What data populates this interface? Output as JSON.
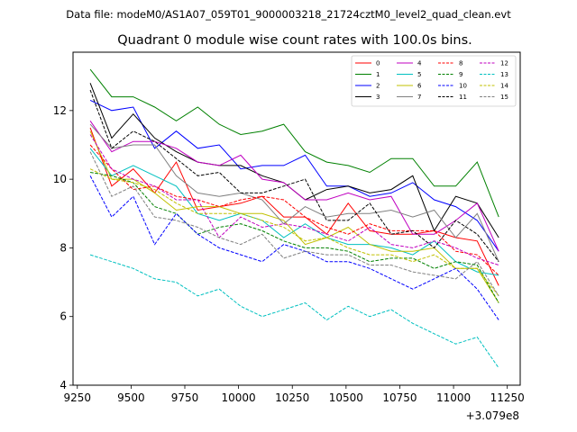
{
  "chart_data": {
    "type": "line",
    "suptitle": "Data file: modeM0/AS1A07_059T01_9000003218_21724cztM0_level2_quad_clean.evt",
    "title": "Quadrant 0 module wise count rates with 100.0s bins.",
    "xlabel": "",
    "ylabel": "",
    "x_offset_label": "+3.079e8",
    "xlim": [
      9230,
      11310
    ],
    "ylim": [
      4,
      13.7
    ],
    "xticks": [
      9250,
      9500,
      9750,
      10000,
      10250,
      10500,
      10750,
      11000,
      11250
    ],
    "xtick_labels": [
      "9250",
      "9500",
      "9750",
      "10000",
      "10250",
      "10500",
      "10750",
      "11000",
      "11250"
    ],
    "yticks": [
      4,
      6,
      8,
      10,
      12
    ],
    "ytick_labels": [
      "4",
      "6",
      "8",
      "10",
      "12"
    ],
    "x": [
      9310,
      9410,
      9510,
      9610,
      9710,
      9810,
      9910,
      10010,
      10110,
      10210,
      10310,
      10410,
      10510,
      10610,
      10710,
      10810,
      10910,
      11010,
      11110,
      11210
    ],
    "legend_position": "upper right",
    "series": [
      {
        "name": "0",
        "color": "#ff0000",
        "dash": "solid",
        "values": [
          11.5,
          9.8,
          10.3,
          9.6,
          10.5,
          9.1,
          9.2,
          9.3,
          9.5,
          8.9,
          8.9,
          8.4,
          9.3,
          8.5,
          8.4,
          8.4,
          8.5,
          8.3,
          8.2,
          6.9
        ]
      },
      {
        "name": "1",
        "color": "#008000",
        "dash": "solid",
        "values": [
          13.2,
          12.4,
          12.4,
          12.1,
          11.7,
          12.1,
          11.6,
          11.3,
          11.4,
          11.6,
          10.8,
          10.5,
          10.4,
          10.2,
          10.6,
          10.6,
          9.8,
          9.8,
          10.5,
          8.9
        ]
      },
      {
        "name": "2",
        "color": "#0000ff",
        "dash": "solid",
        "values": [
          12.3,
          12.0,
          12.1,
          10.9,
          11.4,
          10.9,
          11.0,
          10.3,
          10.4,
          10.4,
          10.7,
          9.8,
          9.8,
          9.5,
          9.6,
          9.9,
          9.4,
          9.2,
          8.8,
          7.9
        ]
      },
      {
        "name": "3",
        "color": "#000000",
        "dash": "solid",
        "values": [
          12.8,
          11.2,
          11.9,
          11.2,
          10.8,
          10.5,
          10.4,
          10.4,
          10.1,
          9.9,
          9.4,
          9.7,
          9.8,
          9.6,
          9.7,
          10.1,
          8.5,
          9.5,
          9.3,
          8.3
        ]
      },
      {
        "name": "4",
        "color": "#c000c0",
        "dash": "solid",
        "values": [
          11.7,
          10.8,
          11.1,
          11.1,
          10.9,
          10.5,
          10.4,
          10.7,
          10.0,
          9.9,
          9.4,
          9.4,
          9.6,
          9.4,
          9.5,
          8.4,
          8.4,
          8.8,
          9.3,
          7.9
        ]
      },
      {
        "name": "5",
        "color": "#00c0c0",
        "dash": "solid",
        "values": [
          10.9,
          10.1,
          10.4,
          10.1,
          9.8,
          9.0,
          8.8,
          9.0,
          8.8,
          8.3,
          8.7,
          8.3,
          8.1,
          8.1,
          8.0,
          7.8,
          8.2,
          7.6,
          7.3,
          7.2
        ]
      },
      {
        "name": "6",
        "color": "#c0c000",
        "dash": "solid",
        "values": [
          11.4,
          10.0,
          10.0,
          9.6,
          9.1,
          9.2,
          9.2,
          9.0,
          9.0,
          8.8,
          8.1,
          8.3,
          8.6,
          8.1,
          7.9,
          7.9,
          8.0,
          7.4,
          7.4,
          6.4
        ]
      },
      {
        "name": "7",
        "color": "#808080",
        "dash": "solid",
        "values": [
          11.6,
          10.9,
          11.0,
          11.0,
          10.1,
          9.6,
          9.5,
          9.6,
          9.4,
          8.7,
          9.2,
          8.9,
          9.0,
          9.0,
          9.1,
          8.9,
          9.1,
          8.3,
          9.0,
          7.6
        ]
      },
      {
        "name": "8",
        "color": "#ff0000",
        "dash": "dashed",
        "values": [
          11.0,
          10.3,
          9.7,
          9.8,
          9.5,
          9.4,
          9.2,
          9.4,
          9.5,
          9.4,
          8.9,
          8.6,
          8.4,
          8.7,
          8.5,
          8.5,
          8.5,
          7.9,
          7.8,
          7.2
        ]
      },
      {
        "name": "9",
        "color": "#008000",
        "dash": "dashed",
        "values": [
          10.2,
          10.1,
          9.9,
          9.2,
          9.0,
          8.4,
          8.6,
          8.7,
          8.5,
          8.2,
          8.0,
          8.0,
          7.9,
          7.6,
          7.7,
          7.7,
          7.4,
          7.6,
          7.5,
          6.4
        ]
      },
      {
        "name": "10",
        "color": "#0000ff",
        "dash": "dashed",
        "values": [
          10.1,
          8.9,
          9.5,
          8.1,
          9.0,
          8.4,
          8.0,
          7.8,
          7.6,
          8.1,
          7.9,
          7.6,
          7.6,
          7.4,
          7.1,
          6.8,
          7.1,
          7.4,
          6.8,
          5.9
        ]
      },
      {
        "name": "11",
        "color": "#000000",
        "dash": "dashed",
        "values": [
          12.6,
          10.9,
          11.4,
          11.1,
          10.6,
          10.1,
          10.2,
          9.6,
          9.6,
          9.8,
          10.0,
          8.8,
          8.8,
          9.3,
          8.4,
          8.5,
          8.0,
          8.8,
          8.4,
          7.6
        ]
      },
      {
        "name": "12",
        "color": "#c000c0",
        "dash": "dashed",
        "values": [
          11.3,
          10.3,
          10.0,
          9.8,
          9.4,
          9.4,
          8.3,
          8.9,
          8.6,
          8.7,
          8.6,
          8.4,
          8.2,
          8.6,
          8.1,
          8.0,
          8.2,
          8.0,
          7.7,
          7.5
        ]
      },
      {
        "name": "13",
        "color": "#00c0c0",
        "dash": "dashed",
        "values": [
          7.8,
          7.6,
          7.4,
          7.1,
          7.0,
          6.6,
          6.8,
          6.3,
          6.0,
          6.2,
          6.4,
          5.9,
          6.3,
          6.0,
          6.2,
          5.8,
          5.5,
          5.2,
          5.4,
          4.5
        ]
      },
      {
        "name": "14",
        "color": "#c0c000",
        "dash": "dashed",
        "values": [
          10.3,
          10.0,
          9.9,
          9.7,
          9.3,
          9.0,
          9.0,
          9.0,
          8.8,
          8.6,
          8.2,
          8.3,
          8.0,
          7.8,
          7.8,
          7.6,
          7.8,
          7.4,
          7.4,
          6.6
        ]
      },
      {
        "name": "15",
        "color": "#808080",
        "dash": "dashed",
        "values": [
          10.8,
          9.5,
          9.8,
          8.9,
          8.8,
          8.6,
          8.3,
          8.1,
          8.4,
          7.7,
          7.9,
          7.8,
          7.8,
          7.5,
          7.5,
          7.3,
          7.2,
          7.1,
          7.6,
          6.6
        ]
      }
    ]
  }
}
